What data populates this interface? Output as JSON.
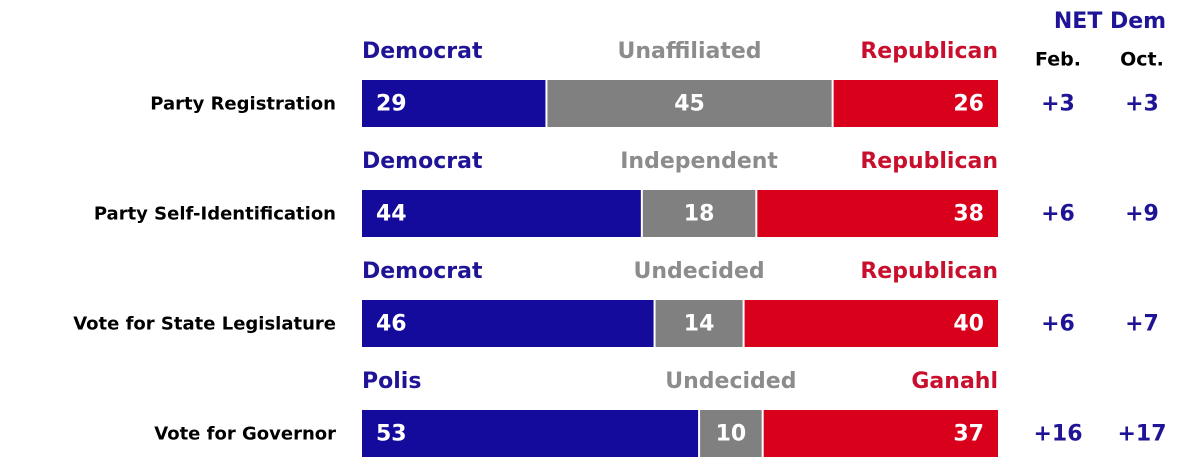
{
  "chart_data": {
    "type": "bar",
    "orientation": "horizontal",
    "stacked": true,
    "categories": [
      "Party Registration",
      "Party Self-Identification",
      "Vote for State Legislature",
      "Vote for Governor"
    ],
    "xlim": [
      0,
      100
    ],
    "series": [
      {
        "color": "#140a9b",
        "label_color": "#1f1496",
        "labels": [
          "Democrat",
          "Democrat",
          "Democrat",
          "Polis"
        ],
        "values": [
          29,
          44,
          46,
          53
        ]
      },
      {
        "color": "#808080",
        "label_color": "#8c8c8c",
        "labels": [
          "Unaffiliated",
          "Independent",
          "Undecided",
          "Undecided"
        ],
        "values": [
          45,
          18,
          14,
          10
        ]
      },
      {
        "color": "#d9001b",
        "label_color": "#c8102e",
        "labels": [
          "Republican",
          "Republican",
          "Republican",
          "Ganahl"
        ],
        "values": [
          26,
          38,
          40,
          37
        ]
      }
    ],
    "net_dem": {
      "title": "NET Dem",
      "columns": [
        "Feb.",
        "Oct."
      ],
      "color": "#1f1496",
      "values": [
        [
          3,
          3
        ],
        [
          6,
          9
        ],
        [
          6,
          7
        ],
        [
          16,
          17
        ]
      ],
      "value_labels": [
        [
          "+3",
          "+3"
        ],
        [
          "+6",
          "+9"
        ],
        [
          "+6",
          "+7"
        ],
        [
          "+16",
          "+17"
        ]
      ]
    }
  }
}
